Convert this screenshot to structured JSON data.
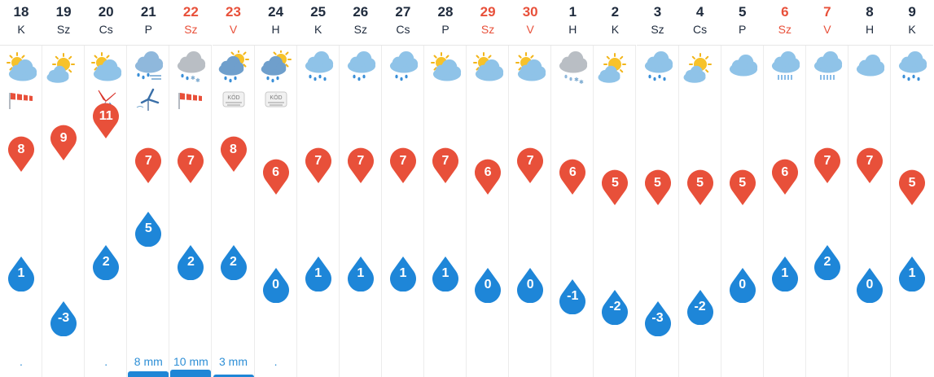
{
  "forecast": {
    "colors": {
      "max_pin": "#e8503a",
      "min_drop": "#1e86d8",
      "weekend_text": "#e8503a",
      "weekday_text": "#1f2b3d",
      "precip_text": "#2e8fd6",
      "precip_bar": "#1f86d6"
    },
    "days": [
      {
        "day": "18",
        "weekday": "K",
        "weekend": false,
        "icon": "partly-cloudy-icon",
        "extra": "windsock-icon",
        "max": "8",
        "min": "1",
        "precip": ".",
        "precip_bar": 0
      },
      {
        "day": "19",
        "weekday": "Sz",
        "weekend": false,
        "icon": "sun-cloud-icon",
        "extra": "",
        "max": "9",
        "min": "-3",
        "precip": "",
        "precip_bar": 0
      },
      {
        "day": "20",
        "weekday": "Cs",
        "weekend": false,
        "icon": "partly-cloudy-icon",
        "extra": "storm-wind-warning-icon",
        "max": "11",
        "min": "2",
        "precip": ".",
        "precip_bar": 0
      },
      {
        "day": "21",
        "weekday": "P",
        "weekend": false,
        "icon": "rain-snow-wind-icon",
        "extra": "wind-turbine-icon",
        "max": "7",
        "min": "5",
        "precip": "8 mm",
        "precip_bar": 0.8
      },
      {
        "day": "22",
        "weekday": "Sz",
        "weekend": true,
        "icon": "rain-snow-icon",
        "extra": "windsock-icon",
        "max": "7",
        "min": "2",
        "precip": "10 mm",
        "precip_bar": 1.0
      },
      {
        "day": "23",
        "weekday": "V",
        "weekend": true,
        "icon": "sun-cloud-rain-icon",
        "extra": "fog-icon",
        "extra_text": "KÖD",
        "max": "8",
        "min": "2",
        "precip": "3 mm",
        "precip_bar": 0.3
      },
      {
        "day": "24",
        "weekday": "H",
        "weekend": false,
        "icon": "sun-cloud-rain-icon",
        "extra": "fog-icon",
        "extra_text": "KÖD",
        "max": "6",
        "min": "0",
        "precip": ".",
        "precip_bar": 0
      },
      {
        "day": "25",
        "weekday": "K",
        "weekend": false,
        "icon": "rain-icon",
        "extra": "",
        "max": "7",
        "min": "1",
        "precip": "",
        "precip_bar": 0
      },
      {
        "day": "26",
        "weekday": "Sz",
        "weekend": false,
        "icon": "light-rain-icon",
        "extra": "",
        "max": "7",
        "min": "1",
        "precip": "",
        "precip_bar": 0
      },
      {
        "day": "27",
        "weekday": "Cs",
        "weekend": false,
        "icon": "light-rain-icon",
        "extra": "",
        "max": "7",
        "min": "1",
        "precip": "",
        "precip_bar": 0
      },
      {
        "day": "28",
        "weekday": "P",
        "weekend": false,
        "icon": "partly-cloudy-icon",
        "extra": "",
        "max": "7",
        "min": "1",
        "precip": "",
        "precip_bar": 0
      },
      {
        "day": "29",
        "weekday": "Sz",
        "weekend": true,
        "icon": "partly-cloudy-icon",
        "extra": "",
        "max": "6",
        "min": "0",
        "precip": "",
        "precip_bar": 0
      },
      {
        "day": "30",
        "weekday": "V",
        "weekend": true,
        "icon": "partly-cloudy-icon",
        "extra": "",
        "max": "7",
        "min": "0",
        "precip": "",
        "precip_bar": 0
      },
      {
        "day": "1",
        "weekday": "H",
        "weekend": false,
        "icon": "snow-cloud-icon",
        "extra": "",
        "max": "6",
        "min": "-1",
        "precip": "",
        "precip_bar": 0
      },
      {
        "day": "2",
        "weekday": "K",
        "weekend": false,
        "icon": "sun-cloud-icon",
        "extra": "",
        "max": "5",
        "min": "-2",
        "precip": "",
        "precip_bar": 0
      },
      {
        "day": "3",
        "weekday": "Sz",
        "weekend": false,
        "icon": "rain-icon",
        "extra": "",
        "max": "5",
        "min": "-3",
        "precip": "",
        "precip_bar": 0
      },
      {
        "day": "4",
        "weekday": "Cs",
        "weekend": false,
        "icon": "sun-cloud-icon",
        "extra": "",
        "max": "5",
        "min": "-2",
        "precip": "",
        "precip_bar": 0
      },
      {
        "day": "5",
        "weekday": "P",
        "weekend": false,
        "icon": "cloud-icon",
        "extra": "",
        "max": "5",
        "min": "0",
        "precip": "",
        "precip_bar": 0
      },
      {
        "day": "6",
        "weekday": "Sz",
        "weekend": true,
        "icon": "heavy-rain-icon",
        "extra": "",
        "max": "6",
        "min": "1",
        "precip": "",
        "precip_bar": 0
      },
      {
        "day": "7",
        "weekday": "V",
        "weekend": true,
        "icon": "heavy-rain-icon",
        "extra": "",
        "max": "7",
        "min": "2",
        "precip": "",
        "precip_bar": 0
      },
      {
        "day": "8",
        "weekday": "H",
        "weekend": false,
        "icon": "cloud-icon",
        "extra": "",
        "max": "7",
        "min": "0",
        "precip": "",
        "precip_bar": 0
      },
      {
        "day": "9",
        "weekday": "K",
        "weekend": false,
        "icon": "rain-icon",
        "extra": "",
        "max": "5",
        "min": "1",
        "precip": "",
        "precip_bar": 0
      }
    ]
  }
}
